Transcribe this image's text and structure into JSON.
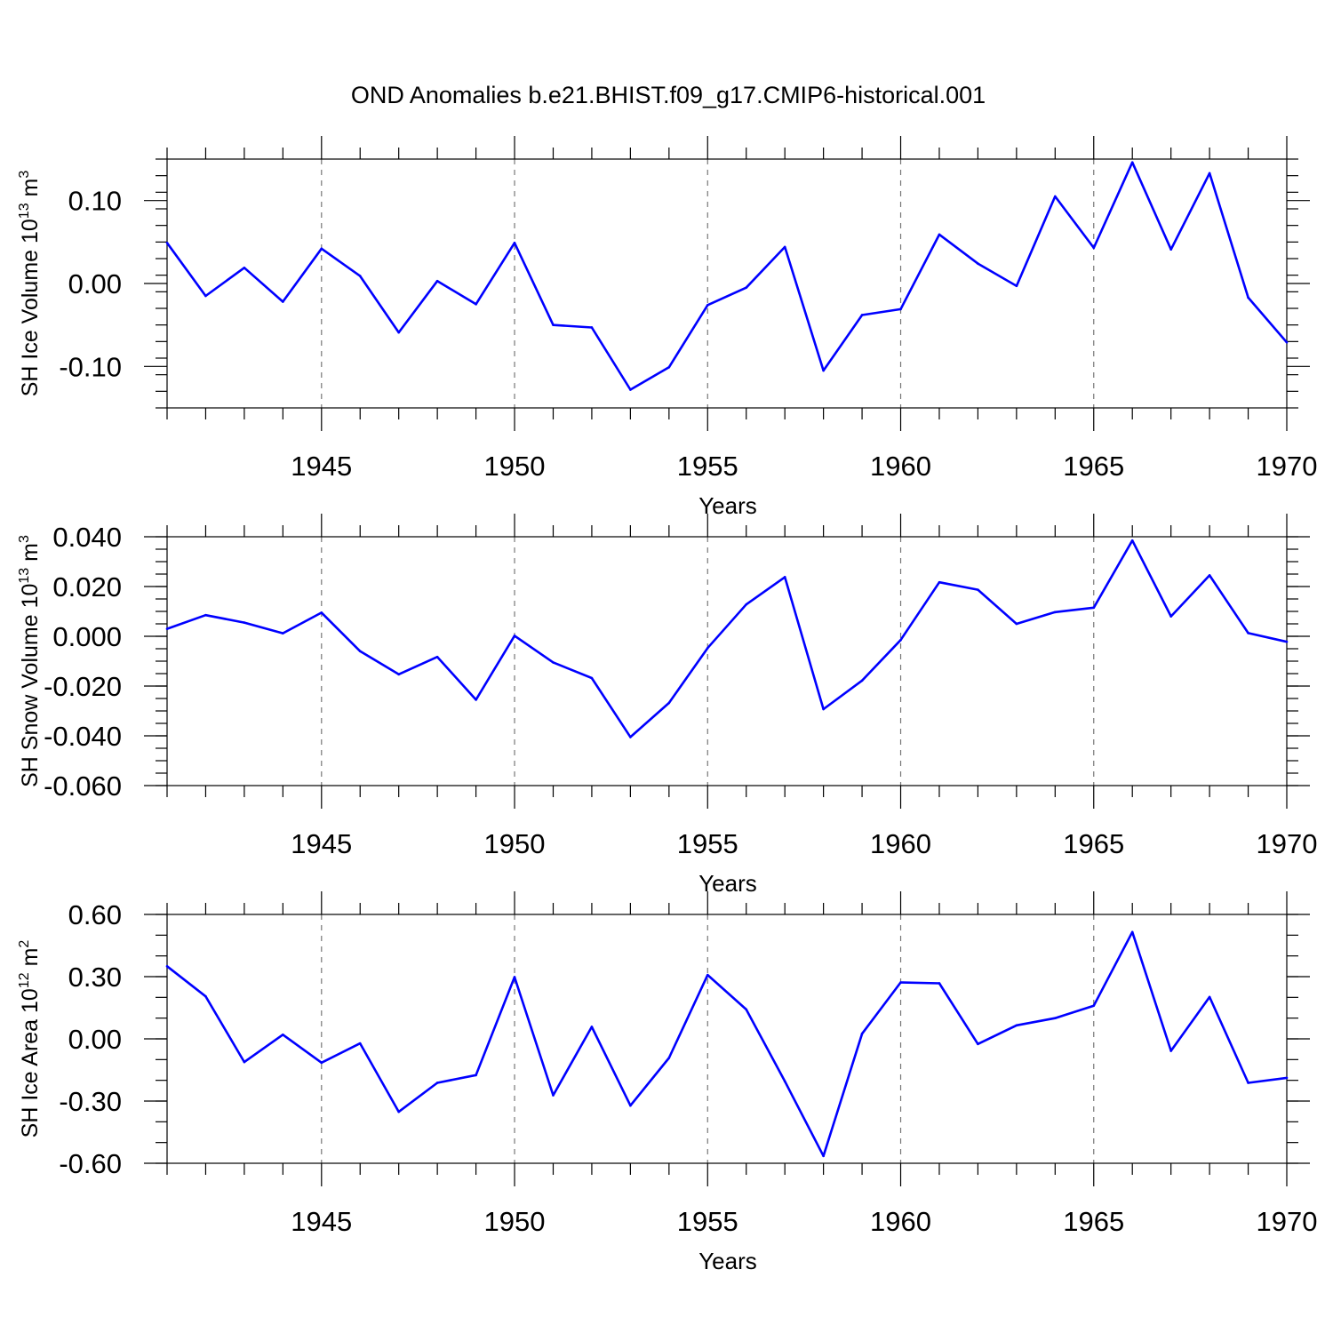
{
  "title": "OND Anomalies b.e21.BHIST.f09_g17.CMIP6-historical.001",
  "colors": {
    "line": "#0000ff",
    "axis": "#000000",
    "grid": "#777777"
  },
  "chart_data": [
    {
      "type": "line",
      "xlabel": "Years",
      "ylabel": {
        "text": "SH Ice Volume 10",
        "sup1": "13",
        "mid": " m",
        "sup2": "3"
      },
      "xlim": [
        1941,
        1970
      ],
      "ylim": [
        -0.15,
        0.15
      ],
      "xticks": [
        1945,
        1950,
        1955,
        1960,
        1965,
        1970
      ],
      "xtick_labels": [
        "1945",
        "1950",
        "1955",
        "1960",
        "1965",
        "1970"
      ],
      "yticks": [
        -0.1,
        0.0,
        0.1
      ],
      "ytick_labels": [
        "-0.10",
        "0.00",
        "0.10"
      ],
      "y_minor_step": 0.02,
      "grid": "dashed vertical at labeled years",
      "series": [
        {
          "x": [
            1941,
            1942,
            1943,
            1944,
            1945,
            1946,
            1947,
            1948,
            1949,
            1950,
            1951,
            1952,
            1953,
            1954,
            1955,
            1956,
            1957,
            1958,
            1959,
            1960,
            1961,
            1962,
            1963,
            1964,
            1965,
            1966,
            1967,
            1968,
            1969,
            1970
          ],
          "values": [
            0.049,
            -0.015,
            0.019,
            -0.022,
            0.042,
            0.009,
            -0.059,
            0.003,
            -0.025,
            0.049,
            -0.05,
            -0.053,
            -0.128,
            -0.101,
            -0.026,
            -0.005,
            0.044,
            -0.105,
            -0.038,
            -0.031,
            0.059,
            0.024,
            -0.003,
            0.105,
            0.043,
            0.146,
            0.041,
            0.133,
            -0.017,
            -0.071
          ]
        }
      ]
    },
    {
      "type": "line",
      "xlabel": "Years",
      "ylabel": {
        "text": "SH Snow Volume 10",
        "sup1": "13",
        "mid": " m",
        "sup2": "3"
      },
      "xlim": [
        1941,
        1970
      ],
      "ylim": [
        -0.06,
        0.04
      ],
      "xticks": [
        1945,
        1950,
        1955,
        1960,
        1965,
        1970
      ],
      "xtick_labels": [
        "1945",
        "1950",
        "1955",
        "1960",
        "1965",
        "1970"
      ],
      "yticks": [
        -0.06,
        -0.04,
        -0.02,
        0.0,
        0.02,
        0.04
      ],
      "ytick_labels": [
        "-0.060",
        "-0.040",
        "-0.020",
        "0.000",
        "0.020",
        "0.040"
      ],
      "y_minor_step": 0.005,
      "grid": "dashed vertical at labeled years",
      "series": [
        {
          "x": [
            1941,
            1942,
            1943,
            1944,
            1945,
            1946,
            1947,
            1948,
            1949,
            1950,
            1951,
            1952,
            1953,
            1954,
            1955,
            1956,
            1957,
            1958,
            1959,
            1960,
            1961,
            1962,
            1963,
            1964,
            1965,
            1966,
            1967,
            1968,
            1969,
            1970
          ],
          "values": [
            0.003,
            0.0085,
            0.0055,
            0.0012,
            0.0095,
            -0.006,
            -0.0153,
            -0.0083,
            -0.0255,
            0.0002,
            -0.0105,
            -0.0168,
            -0.0405,
            -0.0268,
            -0.0047,
            0.0128,
            0.0238,
            -0.0293,
            -0.0178,
            -0.0015,
            0.0217,
            0.0187,
            0.005,
            0.0097,
            0.0115,
            0.0385,
            0.008,
            0.0245,
            0.0013,
            -0.0022
          ]
        }
      ]
    },
    {
      "type": "line",
      "xlabel": "Years",
      "ylabel": {
        "text": "SH Ice Area 10",
        "sup1": "12",
        "mid": " m",
        "sup2": "2"
      },
      "xlim": [
        1941,
        1970
      ],
      "ylim": [
        -0.6,
        0.6
      ],
      "xticks": [
        1945,
        1950,
        1955,
        1960,
        1965,
        1970
      ],
      "xtick_labels": [
        "1945",
        "1950",
        "1955",
        "1960",
        "1965",
        "1970"
      ],
      "yticks": [
        -0.6,
        -0.3,
        0.0,
        0.3,
        0.6
      ],
      "ytick_labels": [
        "-0.60",
        "-0.30",
        "0.00",
        "0.30",
        "0.60"
      ],
      "y_minor_step": 0.1,
      "grid": "dashed vertical at labeled years",
      "series": [
        {
          "x": [
            1941,
            1942,
            1943,
            1944,
            1945,
            1946,
            1947,
            1948,
            1949,
            1950,
            1951,
            1952,
            1953,
            1954,
            1955,
            1956,
            1957,
            1958,
            1959,
            1960,
            1961,
            1962,
            1963,
            1964,
            1965,
            1966,
            1967,
            1968,
            1969,
            1970
          ],
          "values": [
            0.35,
            0.205,
            -0.112,
            0.02,
            -0.115,
            -0.022,
            -0.352,
            -0.212,
            -0.175,
            0.298,
            -0.272,
            0.058,
            -0.322,
            -0.092,
            0.308,
            0.142,
            -0.205,
            -0.565,
            0.025,
            0.272,
            0.268,
            -0.025,
            0.065,
            0.1,
            0.16,
            0.515,
            -0.058,
            0.202,
            -0.212,
            -0.188
          ]
        }
      ]
    }
  ]
}
